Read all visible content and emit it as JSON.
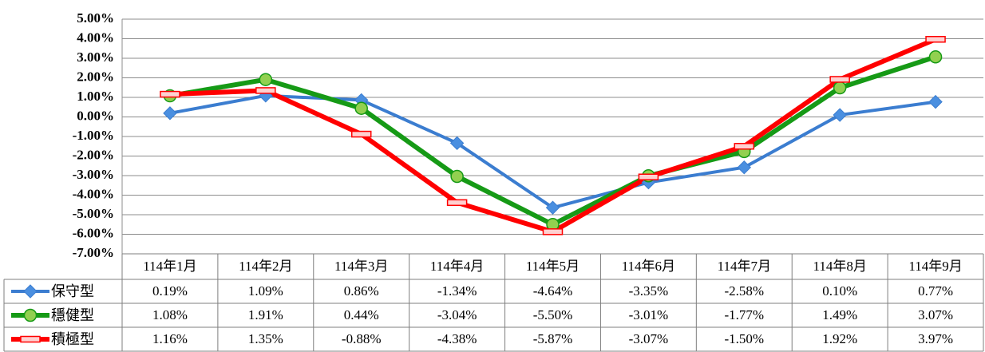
{
  "chart_data": {
    "type": "line",
    "categories": [
      "114年1月",
      "114年2月",
      "114年3月",
      "114年4月",
      "114年5月",
      "114年6月",
      "114年7月",
      "114年8月",
      "114年9月"
    ],
    "series": [
      {
        "name": "保守型",
        "color": "#3b7dd0",
        "marker": "diamond",
        "values": [
          0.19,
          1.09,
          0.86,
          -1.34,
          -4.64,
          -3.35,
          -2.58,
          0.1,
          0.77
        ],
        "value_labels": [
          "0.19%",
          "1.09%",
          "0.86%",
          "-1.34%",
          "-4.64%",
          "-3.35%",
          "-2.58%",
          "0.10%",
          "0.77%"
        ]
      },
      {
        "name": "穩健型",
        "color": "#169a16",
        "marker": "circle",
        "values": [
          1.08,
          1.91,
          0.44,
          -3.04,
          -5.5,
          -3.01,
          -1.77,
          1.49,
          3.07
        ],
        "value_labels": [
          "1.08%",
          "1.91%",
          "0.44%",
          "-3.04%",
          "-5.50%",
          "-3.01%",
          "-1.77%",
          "1.49%",
          "3.07%"
        ]
      },
      {
        "name": "積極型",
        "color": "#ff0000",
        "marker": "dash",
        "values": [
          1.16,
          1.35,
          -0.88,
          -4.38,
          -5.87,
          -3.07,
          -1.5,
          1.92,
          3.97
        ],
        "value_labels": [
          "1.16%",
          "1.35%",
          "-0.88%",
          "-4.38%",
          "-5.87%",
          "-3.07%",
          "-1.50%",
          "1.92%",
          "3.97%"
        ]
      }
    ],
    "ylim": [
      -7,
      5
    ],
    "yticks": [
      {
        "value": 5,
        "label": "5.00%"
      },
      {
        "value": 4,
        "label": "4.00%"
      },
      {
        "value": 3,
        "label": "3.00%"
      },
      {
        "value": 2,
        "label": "2.00%"
      },
      {
        "value": 1,
        "label": "1.00%"
      },
      {
        "value": 0,
        "label": "0.00%"
      },
      {
        "value": -1,
        "label": "-1.00%"
      },
      {
        "value": -2,
        "label": "-2.00%"
      },
      {
        "value": -3,
        "label": "-3.00%"
      },
      {
        "value": -4,
        "label": "-4.00%"
      },
      {
        "value": -5,
        "label": "-5.00%"
      },
      {
        "value": -6,
        "label": "-6.00%"
      },
      {
        "value": -7,
        "label": "-7.00%"
      }
    ],
    "grid": true,
    "data_table": true
  }
}
